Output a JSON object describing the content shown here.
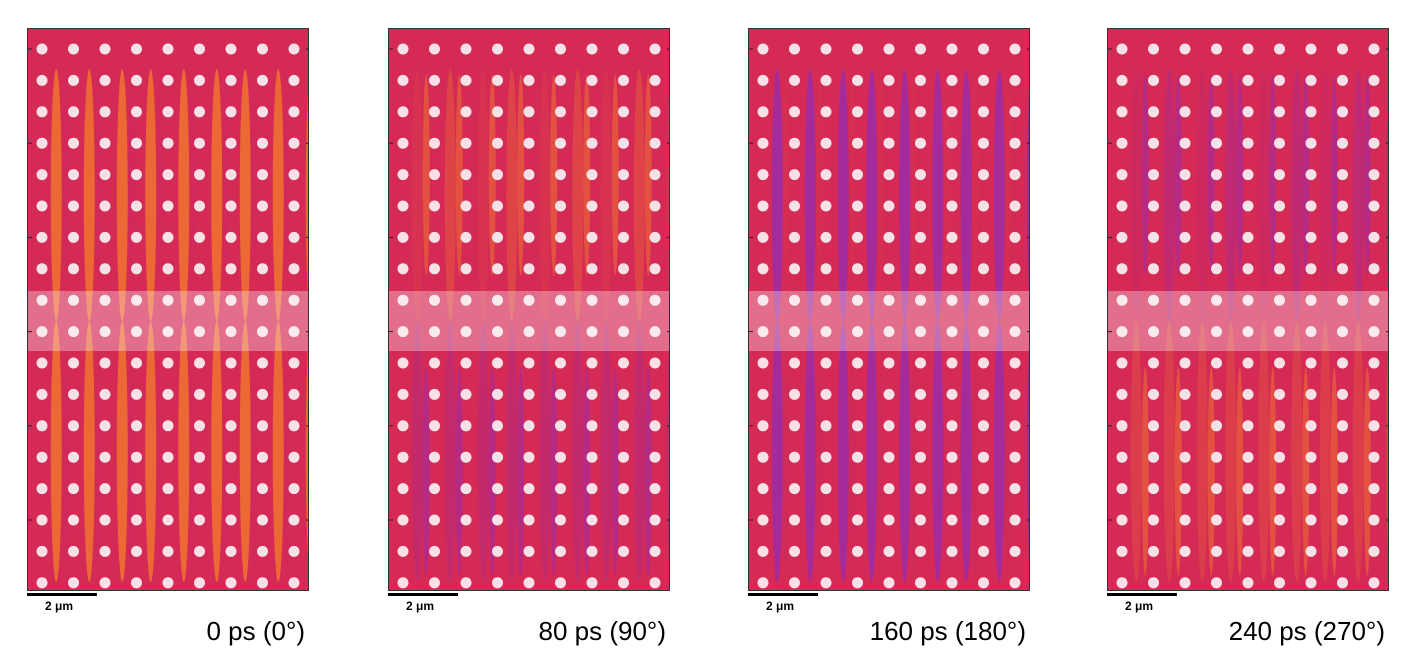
{
  "colors": {
    "background": "#d42a55",
    "hole": "#f6e1e6",
    "stripe_hot": "#ff9a1c",
    "stripe_cold": "#7a2cd6",
    "overlay": "#ffffff"
  },
  "hole_grid": {
    "columns": 9,
    "rows": 18
  },
  "panels": [
    {
      "caption": "0 ps (0°)",
      "scale_label": "2 μm",
      "phase_deg": 0
    },
    {
      "caption": "80 ps (90°)",
      "scale_label": "2 μm",
      "phase_deg": 90
    },
    {
      "caption": "160 ps (180°)",
      "scale_label": "2 μm",
      "phase_deg": 180
    },
    {
      "caption": "240 ps (270°)",
      "scale_label": "2 μm",
      "phase_deg": 270
    }
  ]
}
